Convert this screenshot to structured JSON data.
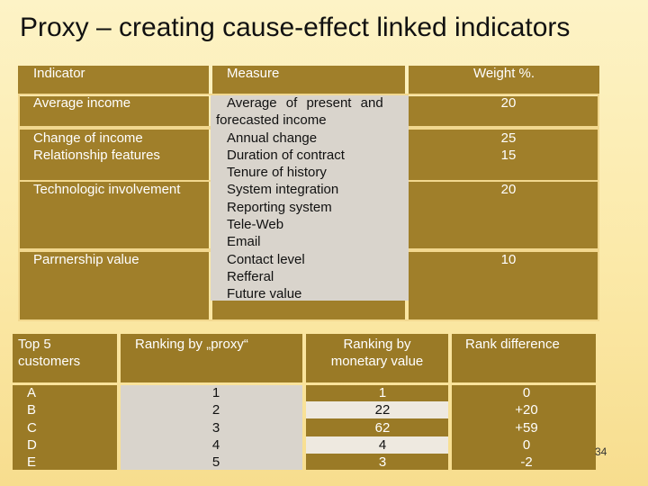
{
  "title": "Proxy – creating cause-effect linked indicators",
  "table1": {
    "headers": [
      "Indicator",
      "Measure",
      "Weight %."
    ],
    "indicators": [
      "Average income",
      "",
      "Change of income",
      "Relationship features",
      "",
      "Technologic involvement",
      "",
      "",
      "",
      "Parrnership value",
      "",
      ""
    ],
    "measures": [
      "Average of present and",
      "forecasted income",
      "Annual change",
      "Duration of contract",
      "Tenure of history",
      "System integration",
      "Reporting system",
      "Tele-Web",
      "Email",
      "Contact level",
      "Refferal",
      "Future value"
    ],
    "weights": [
      "20",
      "",
      "25",
      "15",
      "",
      "20",
      "",
      "",
      "",
      "10",
      "",
      ""
    ]
  },
  "table2": {
    "headers": [
      "Top 5 customers",
      "Ranking by „proxy“",
      "Ranking by monetary value",
      "Rank difference"
    ],
    "customers": [
      "A",
      "B",
      "C",
      "D",
      "E"
    ],
    "proxy_rank": [
      "1",
      "2",
      "3",
      "4",
      "5"
    ],
    "monetary_rank": [
      "1",
      "22",
      "62",
      "4",
      "3"
    ],
    "rank_difference": [
      "0",
      "+20",
      "+59",
      "0",
      "-2"
    ]
  },
  "page_number": "34"
}
